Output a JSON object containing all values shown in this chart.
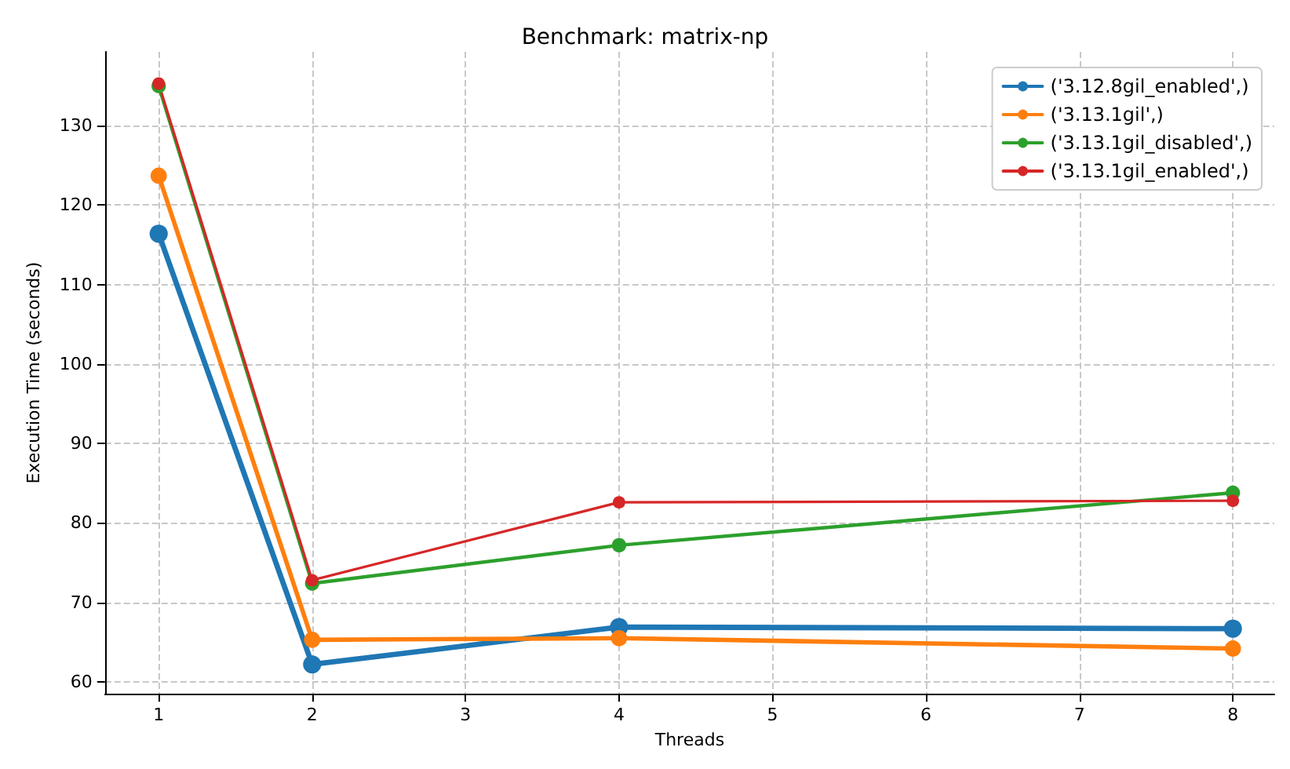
{
  "chart_data": {
    "type": "line",
    "title": "Benchmark: matrix-np",
    "xlabel": "Threads",
    "ylabel": "Execution Time (seconds)",
    "x": [
      1,
      2,
      4,
      8
    ],
    "series": [
      {
        "name": "('3.12.8gil_enabled',)",
        "color": "#1f77b4",
        "values": [
          116.4,
          62.2,
          66.9,
          66.7
        ]
      },
      {
        "name": "('3.13.1gil',)",
        "color": "#ff7f0e",
        "values": [
          123.7,
          65.3,
          65.5,
          64.2
        ]
      },
      {
        "name": "('3.13.1gil_disabled',)",
        "color": "#2ca02c",
        "values": [
          135.0,
          72.4,
          77.2,
          83.8
        ]
      },
      {
        "name": "('3.13.1gil_enabled',)",
        "color": "#d62728",
        "values": [
          135.3,
          72.8,
          82.6,
          82.8
        ]
      }
    ],
    "xlim": [
      0.65,
      8.27
    ],
    "ylim": [
      58.5,
      139.3
    ],
    "xticks": [
      1,
      2,
      3,
      4,
      5,
      6,
      7,
      8
    ],
    "yticks": [
      60,
      70,
      80,
      90,
      100,
      110,
      120,
      130
    ],
    "grid": true,
    "legend": "top right",
    "marker": "circle",
    "line_style": "solid"
  }
}
